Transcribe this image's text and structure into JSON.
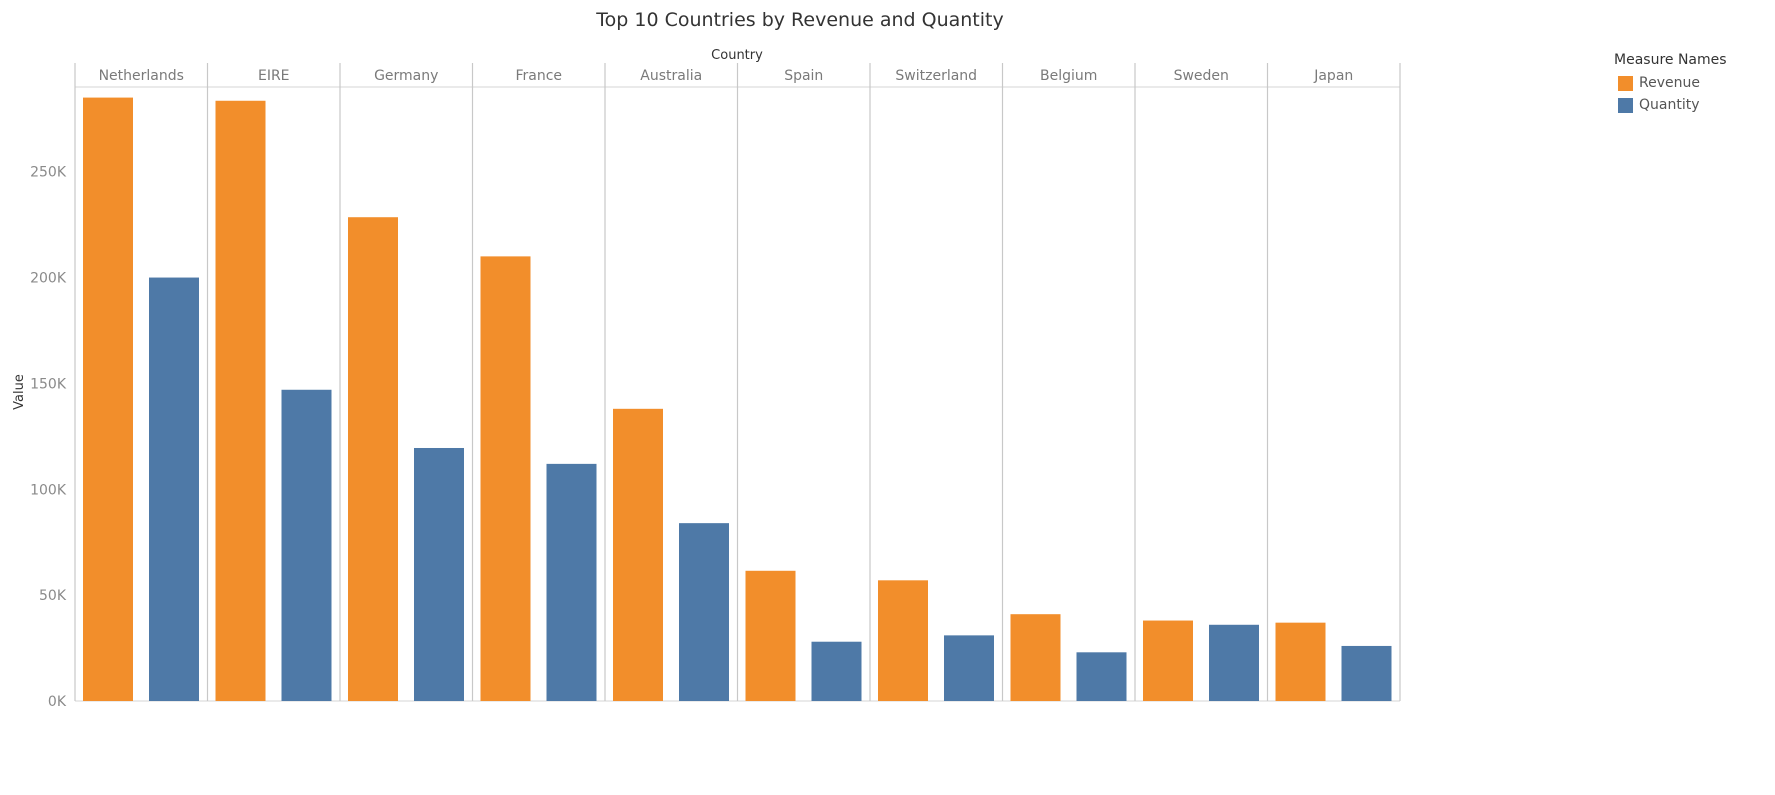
{
  "chart_data": {
    "type": "bar",
    "title": "Top 10 Countries by Revenue and Quantity",
    "column_header": "Country",
    "ylabel": "Value",
    "ylim": [
      0,
      290000
    ],
    "yticks": [
      0,
      50000,
      100000,
      150000,
      200000,
      250000
    ],
    "ytick_labels": [
      "0K",
      "50K",
      "100K",
      "150K",
      "200K",
      "250K"
    ],
    "categories": [
      "Netherlands",
      "EIRE",
      "Germany",
      "France",
      "Australia",
      "Spain",
      "Switzerland",
      "Belgium",
      "Sweden",
      "Japan"
    ],
    "series": [
      {
        "name": "Revenue",
        "color": "#f28e2b",
        "values": [
          285000,
          283500,
          228500,
          210000,
          138000,
          61500,
          57000,
          41000,
          38000,
          37000
        ]
      },
      {
        "name": "Quantity",
        "color": "#4e79a7",
        "values": [
          200000,
          147000,
          119500,
          112000,
          84000,
          28000,
          31000,
          23000,
          36000,
          26000
        ]
      }
    ],
    "legend_title": "Measure Names",
    "legend_position": "top-right",
    "grid": false
  }
}
